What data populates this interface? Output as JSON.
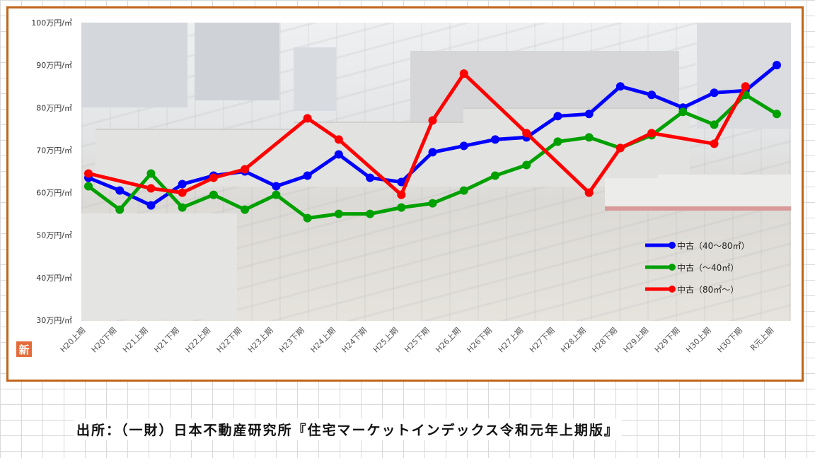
{
  "chart_data": {
    "type": "line",
    "categories": [
      "H20上期",
      "H20下期",
      "H21上期",
      "H21下期",
      "H22上期",
      "H22下期",
      "H23上期",
      "H23下期",
      "H24上期",
      "H24下期",
      "H25上期",
      "H25下期",
      "H26上期",
      "H26下期",
      "H27上期",
      "H27下期",
      "H28上期",
      "H28下期",
      "H29上期",
      "H29下期",
      "H30上期",
      "H30下期",
      "R元上期"
    ],
    "y_ticks": [
      "30万円/㎡",
      "40万円/㎡",
      "50万円/㎡",
      "60万円/㎡",
      "70万円/㎡",
      "80万円/㎡",
      "90万円/㎡",
      "100万円/㎡"
    ],
    "ylim": [
      30,
      100
    ],
    "series": [
      {
        "name": "中古（40～80㎡）",
        "color": "#0000ff",
        "values": [
          63.5,
          60.5,
          57.0,
          62.0,
          64.0,
          65.0,
          61.5,
          64.0,
          69.0,
          63.5,
          62.5,
          69.5,
          71.0,
          72.5,
          73.0,
          78.0,
          78.5,
          85.0,
          83.0,
          80.0,
          83.5,
          84.0,
          90.0
        ]
      },
      {
        "name": "中古（～40㎡）",
        "color": "#00a000",
        "values": [
          61.5,
          56.0,
          64.5,
          56.5,
          59.5,
          56.0,
          59.5,
          54.0,
          55.0,
          55.0,
          56.5,
          57.5,
          60.5,
          64.0,
          66.5,
          72.0,
          73.0,
          70.5,
          73.5,
          79.0,
          76.0,
          83.0,
          78.5
        ]
      },
      {
        "name": "中古（80㎡～）",
        "color": "#ff0000",
        "values": [
          64.5,
          null,
          61.0,
          60.0,
          63.5,
          65.5,
          null,
          77.5,
          72.5,
          null,
          59.5,
          77.0,
          88.0,
          null,
          74.0,
          null,
          60.0,
          70.5,
          74.0,
          null,
          71.5,
          85.0,
          null
        ]
      }
    ],
    "legend_position": "bottom-right",
    "grid": false
  },
  "badge": "新",
  "source_note": "出所：（一財）日本不動産研究所『住宅マーケットインデックス令和元年上期版』"
}
